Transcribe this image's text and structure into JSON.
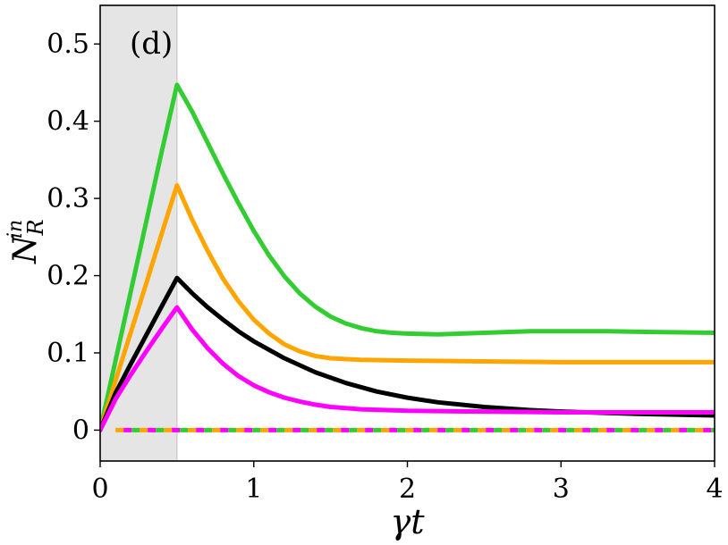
{
  "chart_data": {
    "type": "line",
    "panel_label": "(d)",
    "xlabel": "γt",
    "ylabel": "N",
    "ylabel_sub": "R",
    "ylabel_sup": "in",
    "xlim": [
      0,
      4
    ],
    "ylim": [
      -0.04,
      0.55
    ],
    "x_ticks": [
      0,
      1,
      2,
      3,
      4
    ],
    "x_tick_labels": [
      "0",
      "1",
      "2",
      "3",
      "4"
    ],
    "y_ticks": [
      0,
      0.1,
      0.2,
      0.3,
      0.4,
      0.5
    ],
    "y_tick_labels": [
      "0",
      "0.1",
      "0.2",
      "0.3",
      "0.4",
      "0.5"
    ],
    "grid": false,
    "shaded_region": {
      "x_start": 0,
      "x_end": 0.5,
      "color": "#e5e5e5"
    },
    "series": [
      {
        "color": "#33cc33",
        "style": "solid",
        "points": [
          [
            0,
            0
          ],
          [
            0.1,
            0.09
          ],
          [
            0.2,
            0.18
          ],
          [
            0.3,
            0.27
          ],
          [
            0.4,
            0.36
          ],
          [
            0.5,
            0.447
          ],
          [
            0.6,
            0.412
          ],
          [
            0.7,
            0.372
          ],
          [
            0.8,
            0.332
          ],
          [
            0.9,
            0.294
          ],
          [
            1.0,
            0.258
          ],
          [
            1.1,
            0.226
          ],
          [
            1.2,
            0.199
          ],
          [
            1.3,
            0.177
          ],
          [
            1.4,
            0.16
          ],
          [
            1.5,
            0.147
          ],
          [
            1.6,
            0.138
          ],
          [
            1.7,
            0.132
          ],
          [
            1.8,
            0.128
          ],
          [
            1.9,
            0.126
          ],
          [
            2.0,
            0.125
          ],
          [
            2.2,
            0.124
          ],
          [
            2.5,
            0.126
          ],
          [
            2.8,
            0.128
          ],
          [
            3.0,
            0.128
          ],
          [
            3.3,
            0.128
          ],
          [
            3.6,
            0.127
          ],
          [
            4.0,
            0.126
          ]
        ]
      },
      {
        "color": "#ffa500",
        "style": "solid",
        "points": [
          [
            0,
            0
          ],
          [
            0.1,
            0.064
          ],
          [
            0.2,
            0.127
          ],
          [
            0.3,
            0.19
          ],
          [
            0.4,
            0.254
          ],
          [
            0.5,
            0.317
          ],
          [
            0.6,
            0.272
          ],
          [
            0.7,
            0.232
          ],
          [
            0.8,
            0.196
          ],
          [
            0.9,
            0.167
          ],
          [
            1.0,
            0.143
          ],
          [
            1.1,
            0.125
          ],
          [
            1.2,
            0.111
          ],
          [
            1.3,
            0.102
          ],
          [
            1.4,
            0.096
          ],
          [
            1.5,
            0.093
          ],
          [
            1.7,
            0.091
          ],
          [
            2.0,
            0.09
          ],
          [
            2.5,
            0.089
          ],
          [
            3.0,
            0.088
          ],
          [
            3.5,
            0.088
          ],
          [
            4.0,
            0.088
          ]
        ]
      },
      {
        "color": "#000000",
        "style": "solid",
        "points": [
          [
            0,
            0
          ],
          [
            0.1,
            0.048
          ],
          [
            0.2,
            0.086
          ],
          [
            0.3,
            0.123
          ],
          [
            0.4,
            0.16
          ],
          [
            0.5,
            0.197
          ],
          [
            0.6,
            0.177
          ],
          [
            0.7,
            0.159
          ],
          [
            0.8,
            0.143
          ],
          [
            0.9,
            0.128
          ],
          [
            1.0,
            0.115
          ],
          [
            1.2,
            0.093
          ],
          [
            1.4,
            0.075
          ],
          [
            1.6,
            0.061
          ],
          [
            1.8,
            0.05
          ],
          [
            2.0,
            0.042
          ],
          [
            2.2,
            0.036
          ],
          [
            2.5,
            0.03
          ],
          [
            2.8,
            0.026
          ],
          [
            3.0,
            0.024
          ],
          [
            3.5,
            0.021
          ],
          [
            4.0,
            0.019
          ]
        ]
      },
      {
        "color": "#ff00ff",
        "style": "solid",
        "points": [
          [
            0,
            0
          ],
          [
            0.1,
            0.04
          ],
          [
            0.2,
            0.072
          ],
          [
            0.3,
            0.102
          ],
          [
            0.4,
            0.131
          ],
          [
            0.5,
            0.159
          ],
          [
            0.6,
            0.13
          ],
          [
            0.7,
            0.106
          ],
          [
            0.8,
            0.086
          ],
          [
            0.9,
            0.07
          ],
          [
            1.0,
            0.058
          ],
          [
            1.1,
            0.049
          ],
          [
            1.2,
            0.042
          ],
          [
            1.3,
            0.037
          ],
          [
            1.4,
            0.033
          ],
          [
            1.5,
            0.03
          ],
          [
            1.7,
            0.027
          ],
          [
            2.0,
            0.025
          ],
          [
            2.5,
            0.024
          ],
          [
            3.0,
            0.023
          ],
          [
            3.5,
            0.023
          ],
          [
            4.0,
            0.023
          ]
        ]
      },
      {
        "color": "#ffa500",
        "style": "dashed",
        "points": [
          [
            0.1,
            0
          ],
          [
            4.0,
            0
          ]
        ]
      },
      {
        "color": "#ff00ff",
        "style": "dashed",
        "dash_offset": 9,
        "points": [
          [
            0.1,
            0
          ],
          [
            4.0,
            0
          ]
        ]
      },
      {
        "color": "#33cc33",
        "style": "dashed",
        "dash_offset": 18,
        "points": [
          [
            0.1,
            0
          ],
          [
            4.0,
            0
          ]
        ]
      }
    ]
  }
}
